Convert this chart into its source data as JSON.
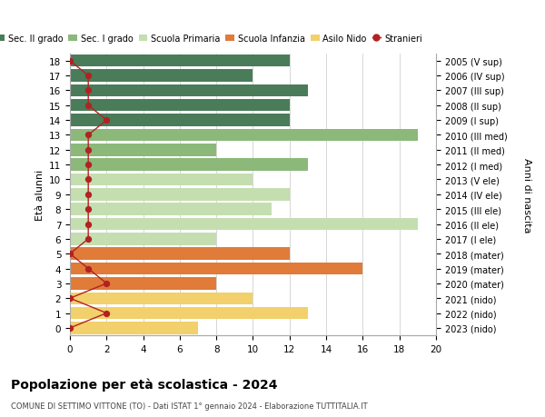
{
  "ages": [
    18,
    17,
    16,
    15,
    14,
    13,
    12,
    11,
    10,
    9,
    8,
    7,
    6,
    5,
    4,
    3,
    2,
    1,
    0
  ],
  "right_labels": [
    "2005 (V sup)",
    "2006 (IV sup)",
    "2007 (III sup)",
    "2008 (II sup)",
    "2009 (I sup)",
    "2010 (III med)",
    "2011 (II med)",
    "2012 (I med)",
    "2013 (V ele)",
    "2014 (IV ele)",
    "2015 (III ele)",
    "2016 (II ele)",
    "2017 (I ele)",
    "2018 (mater)",
    "2019 (mater)",
    "2020 (mater)",
    "2021 (nido)",
    "2022 (nido)",
    "2023 (nido)"
  ],
  "bar_values": [
    12,
    10,
    13,
    12,
    12,
    19,
    8,
    13,
    10,
    12,
    11,
    19,
    8,
    12,
    16,
    8,
    10,
    13,
    7
  ],
  "bar_colors": [
    "#4a7c59",
    "#4a7c59",
    "#4a7c59",
    "#4a7c59",
    "#4a7c59",
    "#8cb87a",
    "#8cb87a",
    "#8cb87a",
    "#c5deb0",
    "#c5deb0",
    "#c5deb0",
    "#c5deb0",
    "#c5deb0",
    "#e07b39",
    "#e07b39",
    "#e07b39",
    "#f2d06b",
    "#f2d06b",
    "#f2d06b"
  ],
  "stranieri_values": [
    0,
    1,
    1,
    1,
    2,
    1,
    1,
    1,
    1,
    1,
    1,
    1,
    1,
    0,
    1,
    2,
    0,
    2,
    0
  ],
  "title_bold": "Popolazione per età scolastica - 2024",
  "subtitle": "COMUNE DI SETTIMO VITTONE (TO) - Dati ISTAT 1° gennaio 2024 - Elaborazione TUTTITALIA.IT",
  "ylabel_left": "Età alunni",
  "ylabel_right": "Anni di nascita",
  "xlim": [
    0,
    20
  ],
  "xticks": [
    0,
    2,
    4,
    6,
    8,
    10,
    12,
    14,
    16,
    18,
    20
  ],
  "legend_labels": [
    "Sec. II grado",
    "Sec. I grado",
    "Scuola Primaria",
    "Scuola Infanzia",
    "Asilo Nido",
    "Stranieri"
  ],
  "legend_colors": [
    "#4a7c59",
    "#8cb87a",
    "#c5deb0",
    "#e07b39",
    "#f2d06b",
    "#b22222"
  ],
  "stranieri_color": "#b22222",
  "bg_color": "#ffffff",
  "grid_color": "#d0d0d0",
  "bar_height": 0.82
}
